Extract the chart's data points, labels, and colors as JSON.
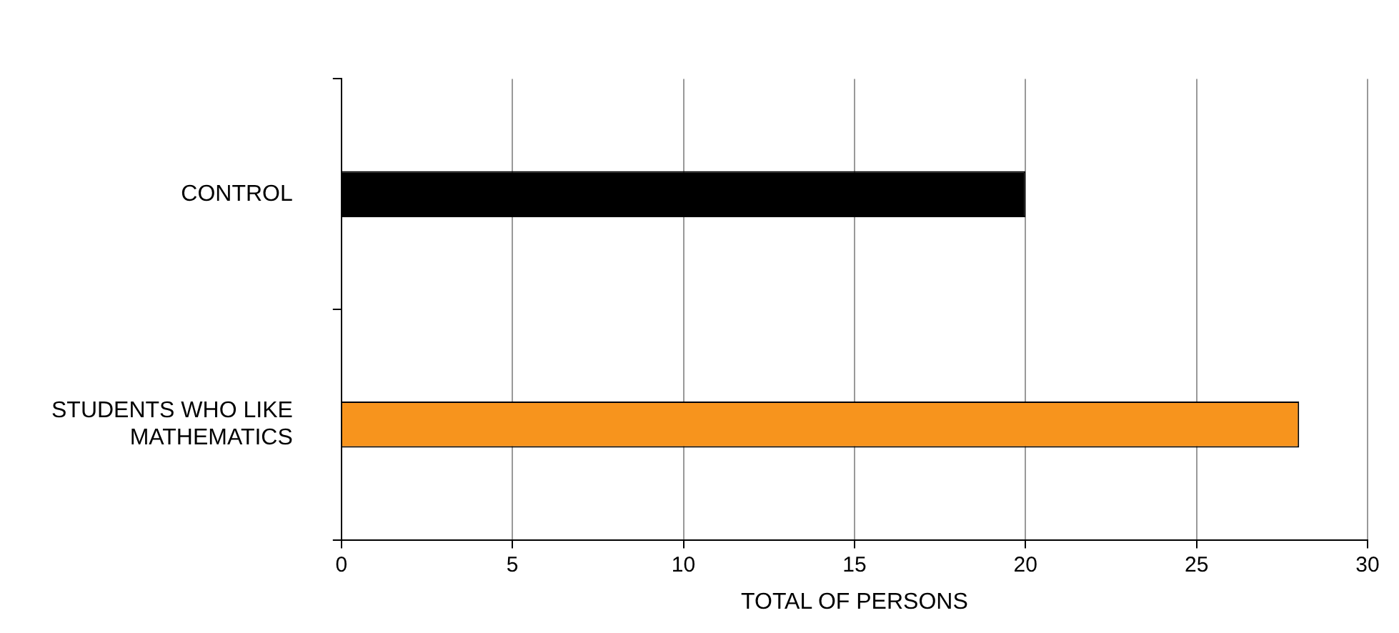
{
  "chart_data": {
    "type": "bar",
    "orientation": "horizontal",
    "categories": [
      "CONTROL",
      "STUDENTS WHO LIKE MATHEMATICS"
    ],
    "values": [
      20,
      28
    ],
    "colors": [
      "#000000",
      "#f7941d"
    ],
    "xlabel": "TOTAL OF PERSONS",
    "xlim": [
      0,
      30
    ],
    "xticks": [
      0,
      5,
      10,
      15,
      20,
      25,
      30
    ],
    "grid": "x",
    "legend": false
  }
}
